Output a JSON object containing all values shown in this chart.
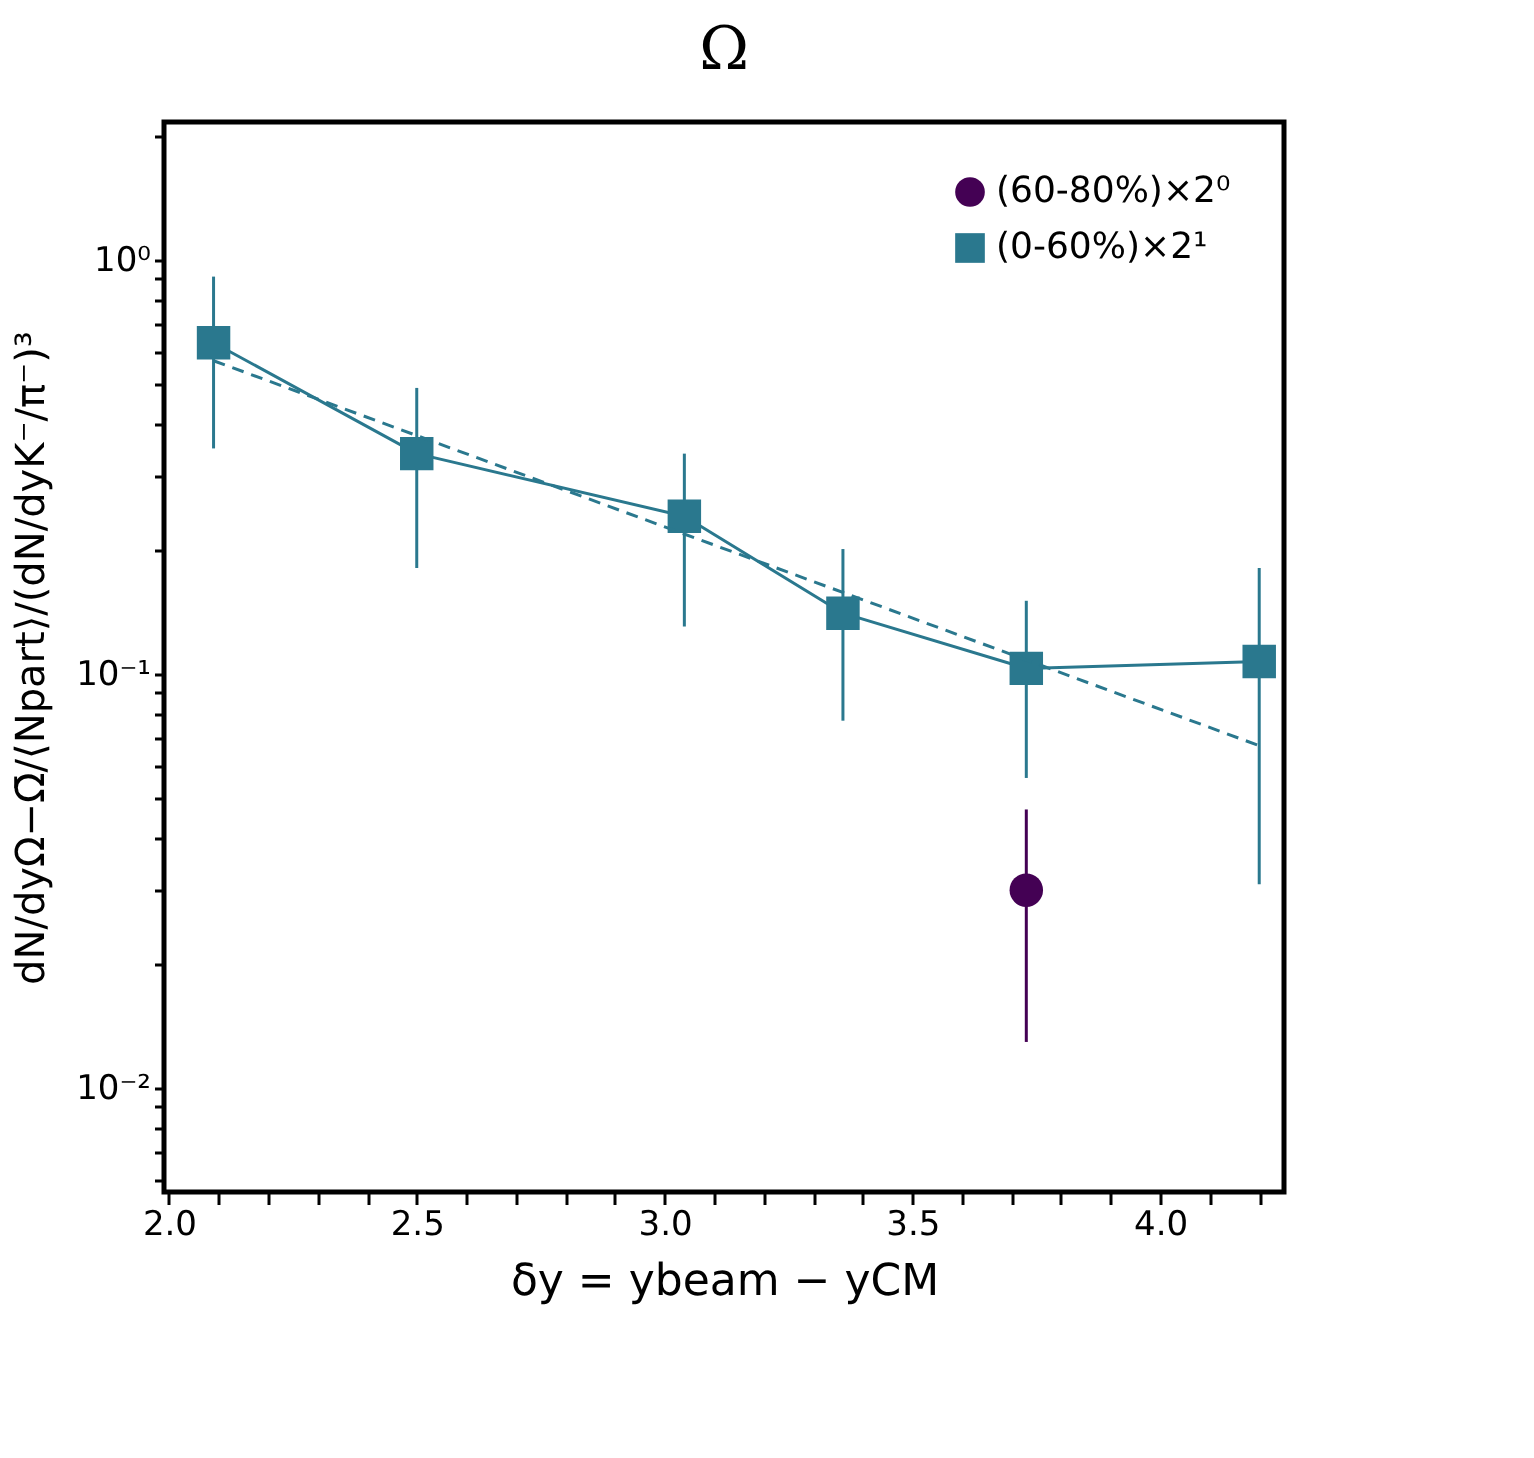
{
  "chart_data": {
    "type": "line",
    "title": "Ω",
    "xlabel": "δy = ybeam − yCM",
    "ylabel": "dN/dyΩ−Ω̄/⟨Npart⟩/(dN/dyK⁻/π⁻)³",
    "log": "y",
    "xlim": [
      1.99,
      4.25
    ],
    "ylim": [
      0.0056,
      2.15
    ],
    "xticks": [
      {
        "value": 2.0,
        "label": "2.0"
      },
      {
        "value": 2.1,
        "label": null
      },
      {
        "value": 2.2,
        "label": null
      },
      {
        "value": 2.3,
        "label": null
      },
      {
        "value": 2.4,
        "label": null
      },
      {
        "value": 2.5,
        "label": "2.5"
      },
      {
        "value": 2.6,
        "label": null
      },
      {
        "value": 2.7,
        "label": null
      },
      {
        "value": 2.8,
        "label": null
      },
      {
        "value": 2.9,
        "label": null
      },
      {
        "value": 3.0,
        "label": "3.0"
      },
      {
        "value": 3.1,
        "label": null
      },
      {
        "value": 3.2,
        "label": null
      },
      {
        "value": 3.3,
        "label": null
      },
      {
        "value": 3.4,
        "label": null
      },
      {
        "value": 3.5,
        "label": "3.5"
      },
      {
        "value": 3.6,
        "label": null
      },
      {
        "value": 3.7,
        "label": null
      },
      {
        "value": 3.8,
        "label": null
      },
      {
        "value": 3.9,
        "label": null
      },
      {
        "value": 4.0,
        "label": "4.0"
      },
      {
        "value": 4.1,
        "label": null
      },
      {
        "value": 4.2,
        "label": null
      }
    ],
    "yticks": [
      {
        "value": 0.006,
        "label": null
      },
      {
        "value": 0.007,
        "label": null
      },
      {
        "value": 0.008,
        "label": null
      },
      {
        "value": 0.009,
        "label": null
      },
      {
        "value": 0.01,
        "label": "10⁻²"
      },
      {
        "value": 0.02,
        "label": null
      },
      {
        "value": 0.03,
        "label": null
      },
      {
        "value": 0.04,
        "label": null
      },
      {
        "value": 0.05,
        "label": null
      },
      {
        "value": 0.06,
        "label": null
      },
      {
        "value": 0.07,
        "label": null
      },
      {
        "value": 0.08,
        "label": null
      },
      {
        "value": 0.09,
        "label": null
      },
      {
        "value": 0.1,
        "label": "10⁻¹"
      },
      {
        "value": 0.2,
        "label": null
      },
      {
        "value": 0.3,
        "label": null
      },
      {
        "value": 0.4,
        "label": null
      },
      {
        "value": 0.5,
        "label": null
      },
      {
        "value": 0.6,
        "label": null
      },
      {
        "value": 0.7,
        "label": null
      },
      {
        "value": 0.8,
        "label": null
      },
      {
        "value": 0.9,
        "label": null
      },
      {
        "value": 1,
        "label": "10⁰"
      },
      {
        "value": 2,
        "label": null
      }
    ],
    "grid": false,
    "legend": "top right",
    "series": [
      {
        "name": "(60-80%)×2⁰",
        "type": "scatter",
        "marker": "circle",
        "color": "#440154",
        "x": [
          3.73
        ],
        "values": [
          0.03
        ],
        "errors": [
          [
            0.0129,
            0.047
          ]
        ]
      },
      {
        "name": "(0-60%)×2¹",
        "type": "line",
        "marker": "square",
        "line_style": "solid",
        "color": "#2a788e",
        "x": [
          2.09,
          2.5,
          3.04,
          3.36,
          3.73,
          4.2
        ],
        "values": [
          0.63,
          0.34,
          0.24,
          0.14,
          0.103,
          0.107
        ],
        "errors": [
          [
            0.35,
            0.91
          ],
          [
            0.18,
            0.49
          ],
          [
            0.13,
            0.34
          ],
          [
            0.077,
            0.2
          ],
          [
            0.056,
            0.15
          ],
          [
            0.031,
            0.18
          ]
        ]
      },
      {
        "type": "line",
        "marker": "none",
        "line_style": "dashed",
        "color": "#2a788e",
        "x": [
          2.09,
          4.2
        ],
        "values": [
          0.57,
          0.067
        ]
      }
    ]
  }
}
